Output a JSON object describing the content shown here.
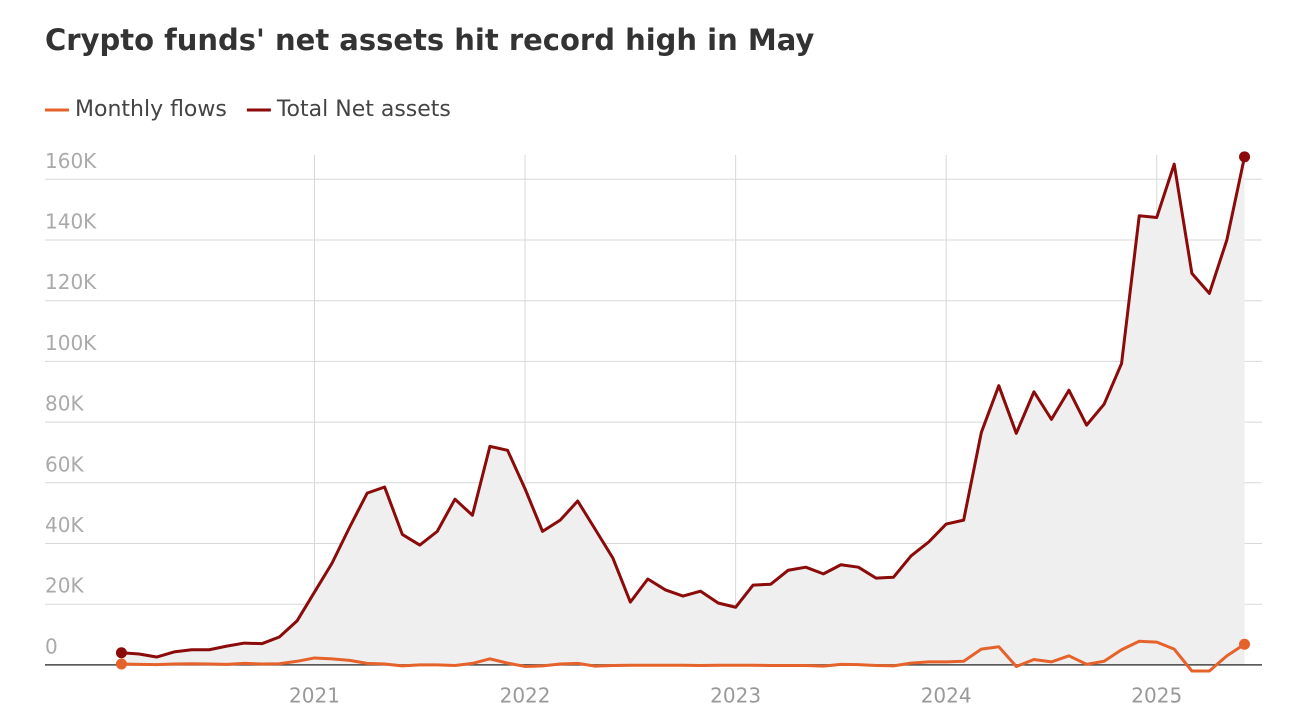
{
  "chart_data": {
    "type": "line",
    "title": "Crypto funds' net assets hit record high in May",
    "x": [
      2020.083,
      2020.167,
      2020.25,
      2020.333,
      2020.417,
      2020.5,
      2020.583,
      2020.667,
      2020.75,
      2020.833,
      2020.917,
      2021,
      2021.083,
      2021.167,
      2021.25,
      2021.333,
      2021.417,
      2021.5,
      2021.583,
      2021.667,
      2021.75,
      2021.833,
      2021.917,
      2022,
      2022.083,
      2022.167,
      2022.25,
      2022.333,
      2022.417,
      2022.5,
      2022.583,
      2022.667,
      2022.75,
      2022.833,
      2022.917,
      2023,
      2023.083,
      2023.167,
      2023.25,
      2023.333,
      2023.417,
      2023.5,
      2023.583,
      2023.667,
      2023.75,
      2023.833,
      2023.917,
      2024,
      2024.083,
      2024.167,
      2024.25,
      2024.333,
      2024.417,
      2024.5,
      2024.583,
      2024.667,
      2024.75,
      2024.833,
      2024.917,
      2025,
      2025.083,
      2025.167,
      2025.25,
      2025.333,
      2025.417
    ],
    "series": [
      {
        "name": "Monthly flows",
        "color": "#e5622a",
        "values": [
          300,
          200,
          100,
          300,
          400,
          300,
          200,
          500,
          300,
          400,
          1200,
          2300,
          2000,
          1500,
          500,
          300,
          -300,
          0,
          0,
          -200,
          500,
          2000,
          600,
          -500,
          -300,
          300,
          500,
          -400,
          -200,
          -100,
          -100,
          -100,
          -100,
          -200,
          -100,
          -100,
          -100,
          -200,
          -200,
          -200,
          -400,
          200,
          100,
          -200,
          -300,
          600,
          1000,
          1000,
          1200,
          5200,
          6000,
          -500,
          1800,
          1000,
          3000,
          200,
          1200,
          5000,
          7800,
          7500,
          5200,
          -2000,
          -2000,
          3000,
          6800
        ]
      },
      {
        "name": "Total Net assets",
        "color": "#8b0a0a",
        "values": [
          4000,
          3600,
          2600,
          4300,
          5000,
          5000,
          6200,
          7200,
          7000,
          9200,
          14500,
          24000,
          33500,
          45400,
          56600,
          58600,
          43000,
          39500,
          44000,
          54600,
          49300,
          72000,
          70700,
          58000,
          44000,
          47700,
          54000,
          44700,
          35200,
          20700,
          28300,
          24700,
          22700,
          24300,
          20400,
          19000,
          26300,
          26600,
          31200,
          32200,
          30000,
          33000,
          32200,
          28600,
          28900,
          35900,
          40500,
          46400,
          47700,
          76600,
          92000,
          76300,
          90000,
          80900,
          90500,
          79000,
          85900,
          99300,
          148000,
          147400,
          165000,
          129000,
          122400,
          140000,
          167400
        ]
      }
    ],
    "xlim": [
      2019.72,
      2025.5
    ],
    "xticks": [
      2021,
      2022,
      2023,
      2024,
      2025
    ],
    "ylim": [
      -2000,
      168000
    ],
    "yticks": [
      0,
      {
        "value": 20000,
        "label": "20K"
      },
      {
        "value": 40000,
        "label": "40K"
      },
      {
        "value": 60000,
        "label": "60K"
      },
      {
        "value": 80000,
        "label": "80K"
      },
      {
        "value": 100000,
        "label": "100K"
      },
      {
        "value": 120000,
        "label": "120K"
      },
      {
        "value": 140000,
        "label": "140K"
      },
      {
        "value": 160000,
        "label": "160K"
      }
    ],
    "grid": true,
    "area_color": "#efefef"
  }
}
